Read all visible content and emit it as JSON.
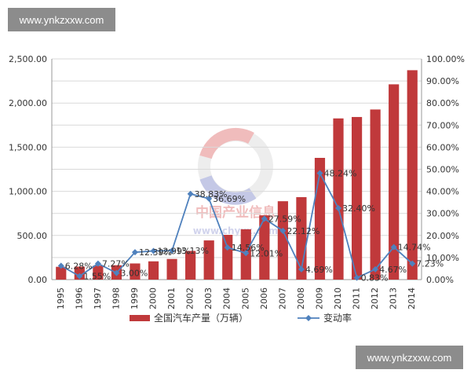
{
  "watermarks": {
    "top": "www.ynkzxxw.com",
    "bottom": "www.ynkzxxw.com"
  },
  "logo_text": {
    "main": "中国产业信息",
    "url": "www.chyxx.com"
  },
  "chart_data": {
    "type": "bar+line",
    "categories": [
      "1995",
      "1996",
      "1997",
      "1998",
      "1999",
      "2000",
      "2001",
      "2002",
      "2003",
      "2004",
      "2005",
      "2006",
      "2007",
      "2008",
      "2009",
      "2010",
      "2011",
      "2012",
      "2013",
      "2014"
    ],
    "series": [
      {
        "name": "全国汽车产量（万辆）",
        "type": "bar",
        "axis": "left",
        "color": "#c0393b",
        "values": [
          145,
          147,
          158,
          163,
          183,
          207,
          234,
          325,
          444,
          507,
          570,
          728,
          888,
          934,
          1379,
          1826,
          1842,
          1927,
          2212,
          2372
        ]
      },
      {
        "name": "变动率",
        "type": "line",
        "axis": "right",
        "color": "#4f81bd",
        "values": [
          6.28,
          1.55,
          7.27,
          3.0,
          12.39,
          12.99,
          13.13,
          38.83,
          36.69,
          14.56,
          12.01,
          27.59,
          22.12,
          4.69,
          48.24,
          32.4,
          0.83,
          4.67,
          14.74,
          7.23
        ],
        "labels": [
          "6.28%",
          "1.55%",
          "7.27%",
          "3.00%",
          "12.39%",
          "12.99%",
          "13.13%",
          "38.83%",
          "36.69%",
          "14.56%",
          "12.01%",
          "27.59%",
          "22.12%",
          "4.69%",
          "48.24%",
          "32.40%",
          "0.83%",
          "4.67%",
          "14.74%",
          "7.23%"
        ]
      }
    ],
    "y_left": {
      "min": 0,
      "max": 2500,
      "ticks": [
        "0.00",
        "500.00",
        "1,000.00",
        "1,500.00",
        "2,000.00",
        "2,500.00"
      ]
    },
    "y_right": {
      "min": 0,
      "max": 100,
      "ticks": [
        "0.00%",
        "10.00%",
        "20.00%",
        "30.00%",
        "40.00%",
        "50.00%",
        "60.00%",
        "70.00%",
        "80.00%",
        "90.00%",
        "100.00%"
      ]
    },
    "grid": true,
    "legend": "bottom"
  }
}
